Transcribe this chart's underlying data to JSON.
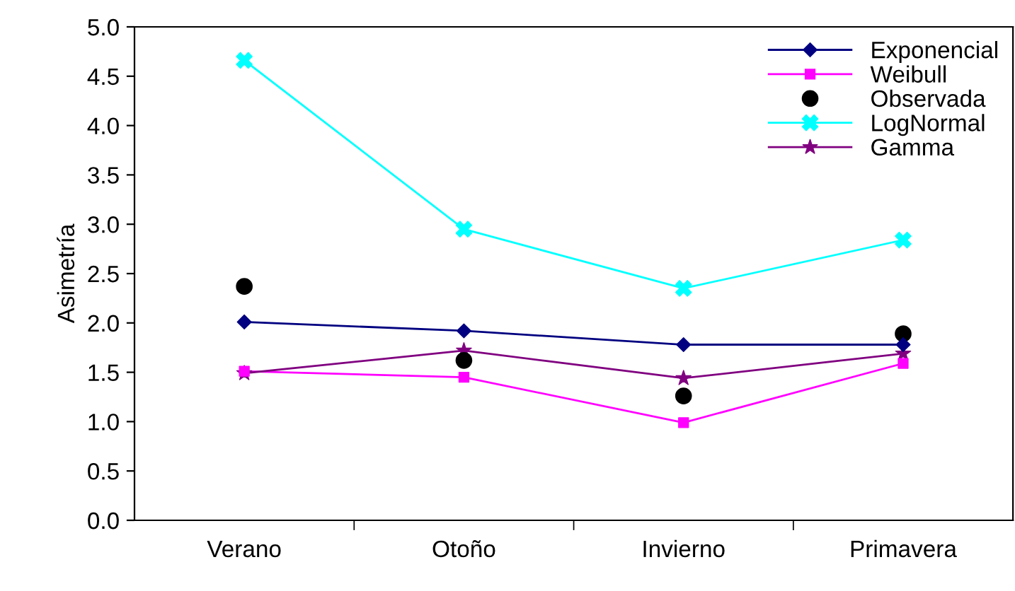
{
  "chart_data": {
    "type": "line",
    "ylabel": "Asimetría",
    "categories": [
      "Verano",
      "Otoño",
      "Invierno",
      "Primavera"
    ],
    "series": [
      {
        "name": "Exponencial",
        "color": "#000080",
        "marker": "diamond",
        "values": [
          2.01,
          1.92,
          1.78,
          1.78
        ]
      },
      {
        "name": "Weibull",
        "color": "#ff00ff",
        "marker": "square",
        "values": [
          1.51,
          1.45,
          0.99,
          1.59
        ]
      },
      {
        "name": "Observada",
        "type": "scatter",
        "color": "#000000",
        "marker": "circle",
        "values": [
          2.37,
          1.62,
          1.26,
          1.89
        ]
      },
      {
        "name": "LogNormal",
        "color": "#00ffff",
        "marker": "cross",
        "values": [
          4.66,
          2.95,
          2.35,
          2.84
        ]
      },
      {
        "name": "Gamma",
        "color": "#800080",
        "marker": "star",
        "values": [
          1.49,
          1.72,
          1.44,
          1.69
        ]
      }
    ],
    "ylim": [
      0,
      5
    ],
    "yticks": [
      {
        "value": 0,
        "label": "0.0"
      },
      {
        "value": 0.5,
        "label": "0.5"
      },
      {
        "value": 1,
        "label": "1.0"
      },
      {
        "value": 1.5,
        "label": "1.5"
      },
      {
        "value": 2,
        "label": "2.0"
      },
      {
        "value": 2.5,
        "label": "2.5"
      },
      {
        "value": 3,
        "label": "3.0"
      },
      {
        "value": 3.5,
        "label": "3.5"
      },
      {
        "value": 4,
        "label": "4.0"
      },
      {
        "value": 4.5,
        "label": "4.5"
      },
      {
        "value": 5,
        "label": "5.0"
      }
    ],
    "grid": false,
    "legend": "top right"
  }
}
